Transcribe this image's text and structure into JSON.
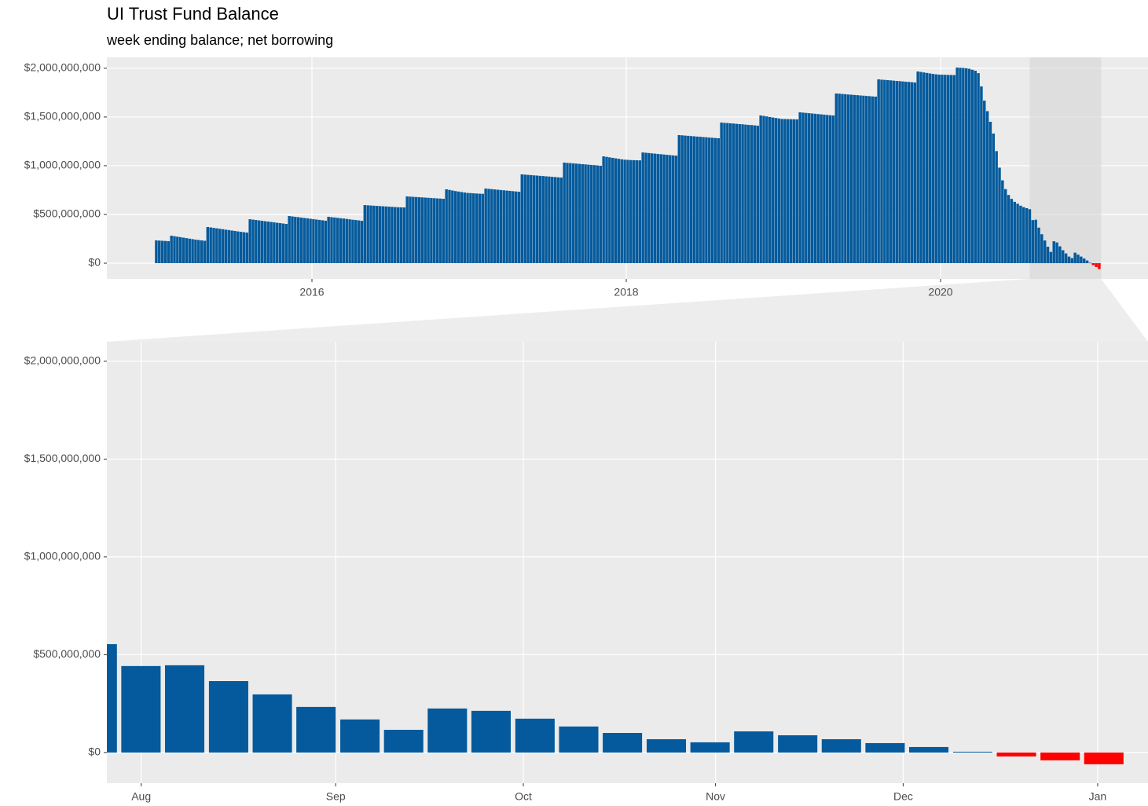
{
  "chart_data": [
    {
      "type": "bar",
      "title": "UI Trust Fund Balance",
      "subtitle": "week ending balance; net borrowing",
      "color": "#045a9c",
      "negative_color": "#ff0000",
      "grid": true,
      "xlim": [
        2014.695,
        2021.32
      ],
      "xticks": [
        2016,
        2018,
        2020
      ],
      "ylim": [
        -161000000,
        2112000000
      ],
      "yticks": [
        {
          "value": 0,
          "label": "$0"
        },
        {
          "value": 500000000,
          "label": "$500,000,000"
        },
        {
          "value": 1000000000,
          "label": "$1,000,000,000"
        },
        {
          "value": 1500000000,
          "label": "$1,500,000,000"
        },
        {
          "value": 2000000000,
          "label": "$2,000,000,000"
        }
      ],
      "x": [
        2015.0096,
        2015.0288,
        2015.0481,
        2015.0673,
        2015.0865,
        2015.1058,
        2015.125,
        2015.1442,
        2015.1635,
        2015.1827,
        2015.2019,
        2015.2212,
        2015.2404,
        2015.2596,
        2015.2788,
        2015.2981,
        2015.3173,
        2015.3365,
        2015.3558,
        2015.375,
        2015.3942,
        2015.4135,
        2015.4327,
        2015.4519,
        2015.4712,
        2015.4904,
        2015.5096,
        2015.5288,
        2015.5481,
        2015.5673,
        2015.5865,
        2015.6058,
        2015.625,
        2015.6442,
        2015.6635,
        2015.6827,
        2015.7019,
        2015.7212,
        2015.7404,
        2015.7596,
        2015.7788,
        2015.7981,
        2015.8173,
        2015.8365,
        2015.8558,
        2015.875,
        2015.8942,
        2015.9135,
        2015.9327,
        2015.9519,
        2015.9712,
        2015.9904,
        2016.0096,
        2016.0288,
        2016.0481,
        2016.0673,
        2016.0865,
        2016.1058,
        2016.125,
        2016.1442,
        2016.1635,
        2016.1827,
        2016.2019,
        2016.2212,
        2016.2404,
        2016.2596,
        2016.2788,
        2016.2981,
        2016.3173,
        2016.3365,
        2016.3558,
        2016.375,
        2016.3942,
        2016.4135,
        2016.4327,
        2016.4519,
        2016.4712,
        2016.4904,
        2016.5096,
        2016.5288,
        2016.5481,
        2016.5673,
        2016.5865,
        2016.6058,
        2016.625,
        2016.6442,
        2016.6635,
        2016.6827,
        2016.7019,
        2016.7212,
        2016.7404,
        2016.7596,
        2016.7788,
        2016.7981,
        2016.8173,
        2016.8365,
        2016.8558,
        2016.875,
        2016.8942,
        2016.9135,
        2016.9327,
        2016.9519,
        2016.9712,
        2016.9904,
        2017.0096,
        2017.0288,
        2017.0481,
        2017.0673,
        2017.0865,
        2017.1058,
        2017.125,
        2017.1442,
        2017.1635,
        2017.1827,
        2017.2019,
        2017.2212,
        2017.2404,
        2017.2596,
        2017.2788,
        2017.2981,
        2017.3173,
        2017.3365,
        2017.3558,
        2017.375,
        2017.3942,
        2017.4135,
        2017.4327,
        2017.4519,
        2017.4712,
        2017.4904,
        2017.5096,
        2017.5288,
        2017.5481,
        2017.5673,
        2017.5865,
        2017.6058,
        2017.625,
        2017.6442,
        2017.6635,
        2017.6827,
        2017.7019,
        2017.7212,
        2017.7404,
        2017.7596,
        2017.7788,
        2017.7981,
        2017.8173,
        2017.8365,
        2017.8558,
        2017.875,
        2017.8942,
        2017.9135,
        2017.9327,
        2017.9519,
        2017.9712,
        2017.9904,
        2018.0096,
        2018.0288,
        2018.0481,
        2018.0673,
        2018.0865,
        2018.1058,
        2018.125,
        2018.1442,
        2018.1635,
        2018.1827,
        2018.2019,
        2018.2212,
        2018.2404,
        2018.2596,
        2018.2788,
        2018.2981,
        2018.3173,
        2018.3365,
        2018.3558,
        2018.375,
        2018.3942,
        2018.4135,
        2018.4327,
        2018.4519,
        2018.4712,
        2018.4904,
        2018.5096,
        2018.5288,
        2018.5481,
        2018.5673,
        2018.5865,
        2018.6058,
        2018.625,
        2018.6442,
        2018.6635,
        2018.6827,
        2018.7019,
        2018.7212,
        2018.7404,
        2018.7596,
        2018.7788,
        2018.7981,
        2018.8173,
        2018.8365,
        2018.8558,
        2018.875,
        2018.8942,
        2018.9135,
        2018.9327,
        2018.9519,
        2018.9712,
        2018.9904,
        2019.0096,
        2019.0288,
        2019.0481,
        2019.0673,
        2019.0865,
        2019.1058,
        2019.125,
        2019.1442,
        2019.1635,
        2019.1827,
        2019.2019,
        2019.2212,
        2019.2404,
        2019.2596,
        2019.2788,
        2019.2981,
        2019.3173,
        2019.3365,
        2019.3558,
        2019.375,
        2019.3942,
        2019.4135,
        2019.4327,
        2019.4519,
        2019.4712,
        2019.4904,
        2019.5096,
        2019.5288,
        2019.5481,
        2019.5673,
        2019.5865,
        2019.6058,
        2019.625,
        2019.6442,
        2019.6635,
        2019.6827,
        2019.7019,
        2019.7212,
        2019.7404,
        2019.7596,
        2019.7788,
        2019.7981,
        2019.8173,
        2019.8365,
        2019.8558,
        2019.875,
        2019.8942,
        2019.9135,
        2019.9327,
        2019.9519,
        2019.9712,
        2019.9904,
        2020.0096,
        2020.0288,
        2020.0481,
        2020.0673,
        2020.0865,
        2020.1058,
        2020.125,
        2020.1442,
        2020.1635,
        2020.1827,
        2020.2019,
        2020.2212,
        2020.2404,
        2020.2596,
        2020.2788,
        2020.2981,
        2020.3173,
        2020.3365,
        2020.3558,
        2020.375,
        2020.3942,
        2020.4135,
        2020.4327,
        2020.4519,
        2020.4712,
        2020.4904,
        2020.5096,
        2020.5288,
        2020.5481,
        2020.5673,
        2020.5865,
        2020.6058,
        2020.625,
        2020.6442,
        2020.6635,
        2020.6827,
        2020.7019,
        2020.7212,
        2020.7404,
        2020.7596,
        2020.7788,
        2020.7981,
        2020.8173,
        2020.8365,
        2020.8558,
        2020.875,
        2020.8942,
        2020.9135,
        2020.9327,
        2020.9519,
        2020.9712,
        2020.9904,
        2021.0096
      ],
      "values": [
        234000000,
        232000000,
        230000000,
        228000000,
        226000000,
        282000000,
        277000000,
        272000000,
        267000000,
        262000000,
        257000000,
        252000000,
        247000000,
        242000000,
        238000000,
        234000000,
        230000000,
        371000000,
        367000000,
        362000000,
        358000000,
        353000000,
        349000000,
        344000000,
        340000000,
        335000000,
        331000000,
        326000000,
        322000000,
        318000000,
        314000000,
        451000000,
        447000000,
        443000000,
        439000000,
        435000000,
        431000000,
        427000000,
        423000000,
        419000000,
        415000000,
        411000000,
        407000000,
        403000000,
        484000000,
        480000000,
        476000000,
        472000000,
        468000000,
        464000000,
        460000000,
        456000000,
        452000000,
        448000000,
        444000000,
        440000000,
        436000000,
        476000000,
        472000000,
        469000000,
        465000000,
        461000000,
        458000000,
        454000000,
        450000000,
        446000000,
        443000000,
        439000000,
        435000000,
        596000000,
        594000000,
        592000000,
        590000000,
        588000000,
        586000000,
        584000000,
        582000000,
        580000000,
        578000000,
        576000000,
        574000000,
        573000000,
        572000000,
        685000000,
        683000000,
        681000000,
        679000000,
        677000000,
        675000000,
        673000000,
        671000000,
        669000000,
        667000000,
        665000000,
        663000000,
        661000000,
        758000000,
        752000000,
        746000000,
        740000000,
        735000000,
        730000000,
        725000000,
        721000000,
        719000000,
        717000000,
        715000000,
        713000000,
        712000000,
        766000000,
        763000000,
        760000000,
        757000000,
        754000000,
        751000000,
        748000000,
        745000000,
        742000000,
        739000000,
        736000000,
        733000000,
        911000000,
        909000000,
        906000000,
        904000000,
        901000000,
        899000000,
        896000000,
        894000000,
        891000000,
        889000000,
        886000000,
        884000000,
        881000000,
        879000000,
        1032000000,
        1029000000,
        1027000000,
        1024000000,
        1022000000,
        1019000000,
        1016000000,
        1014000000,
        1011000000,
        1008000000,
        1006000000,
        1003000000,
        1000000000,
        1096000000,
        1091000000,
        1086000000,
        1081000000,
        1076000000,
        1071000000,
        1066000000,
        1062000000,
        1060000000,
        1058000000,
        1057000000,
        1056000000,
        1055000000,
        1136000000,
        1133000000,
        1130000000,
        1127000000,
        1124000000,
        1121000000,
        1118000000,
        1115000000,
        1112000000,
        1109000000,
        1106000000,
        1104000000,
        1314000000,
        1312000000,
        1309000000,
        1307000000,
        1304000000,
        1302000000,
        1299000000,
        1297000000,
        1294000000,
        1292000000,
        1289000000,
        1287000000,
        1284000000,
        1282000000,
        1443000000,
        1440000000,
        1438000000,
        1435000000,
        1433000000,
        1430000000,
        1427000000,
        1425000000,
        1422000000,
        1419000000,
        1417000000,
        1414000000,
        1411000000,
        1516000000,
        1511000000,
        1506000000,
        1500000000,
        1495000000,
        1490000000,
        1485000000,
        1480000000,
        1479000000,
        1478000000,
        1477000000,
        1476000000,
        1475000000,
        1548000000,
        1545000000,
        1542000000,
        1539000000,
        1536000000,
        1533000000,
        1530000000,
        1527000000,
        1524000000,
        1521000000,
        1518000000,
        1516000000,
        1741000000,
        1739000000,
        1736000000,
        1734000000,
        1731000000,
        1729000000,
        1726000000,
        1724000000,
        1721000000,
        1719000000,
        1716000000,
        1714000000,
        1711000000,
        1709000000,
        1886000000,
        1883000000,
        1881000000,
        1878000000,
        1876000000,
        1873000000,
        1870000000,
        1868000000,
        1865000000,
        1862000000,
        1860000000,
        1857000000,
        1854000000,
        1967000000,
        1962000000,
        1957000000,
        1952000000,
        1947000000,
        1942000000,
        1938000000,
        1935000000,
        1934000000,
        1933000000,
        1932000000,
        1931000000,
        1930000000,
        2007000000,
        2005000000,
        2003000000,
        2000000000,
        1995000000,
        1985000000,
        1975000000,
        1950000000,
        1814000000,
        1668000000,
        1560000000,
        1451000000,
        1330000000,
        1150000000,
        980000000,
        850000000,
        760000000,
        700000000,
        660000000,
        630000000,
        610000000,
        590000000,
        575000000,
        565000000,
        554000000,
        442000000,
        446000000,
        365000000,
        297000000,
        233000000,
        169000000,
        116000000,
        225000000,
        213000000,
        173000000,
        133000000,
        100000000,
        68000000,
        52000000,
        108000000,
        88000000,
        68000000,
        48000000,
        28000000,
        4000000,
        -20000000,
        -40000000,
        -60000000
      ]
    },
    {
      "type": "bar",
      "color": "#045a9c",
      "negative_color": "#ff0000",
      "grid": true,
      "xlim": [
        2020.567,
        2021.022
      ],
      "xticks": [
        {
          "value": 2020.582,
          "label": "Aug"
        },
        {
          "value": 2020.667,
          "label": "Sep"
        },
        {
          "value": 2020.749,
          "label": "Oct"
        },
        {
          "value": 2020.833,
          "label": "Nov"
        },
        {
          "value": 2020.915,
          "label": "Dec"
        },
        {
          "value": 2021.0,
          "label": "Jan"
        }
      ],
      "ylim": [
        -157000000,
        2100000000
      ],
      "yticks": [
        {
          "value": 0,
          "label": "$0"
        },
        {
          "value": 500000000,
          "label": "$500,000,000"
        },
        {
          "value": 1000000000,
          "label": "$1,000,000,000"
        },
        {
          "value": 1500000000,
          "label": "$1,500,000,000"
        },
        {
          "value": 2000000000,
          "label": "$2,000,000,000"
        }
      ],
      "x": [
        2020.5628,
        2020.5819,
        2020.601,
        2020.6202,
        2020.6393,
        2020.6584,
        2020.6776,
        2020.6967,
        2020.7158,
        2020.7349,
        2020.7541,
        2020.7732,
        2020.7923,
        2020.8115,
        2020.8306,
        2020.8497,
        2020.8689,
        2020.888,
        2020.9071,
        2020.9262,
        2020.9454,
        2020.9645,
        2020.9836,
        2021.0027
      ],
      "values": [
        554000000,
        442000000,
        446000000,
        365000000,
        297000000,
        233000000,
        169000000,
        116000000,
        225000000,
        213000000,
        173000000,
        133000000,
        100000000,
        68000000,
        52000000,
        108000000,
        88000000,
        68000000,
        48000000,
        28000000,
        4000000,
        -20000000,
        -40000000,
        -60000000
      ]
    }
  ]
}
